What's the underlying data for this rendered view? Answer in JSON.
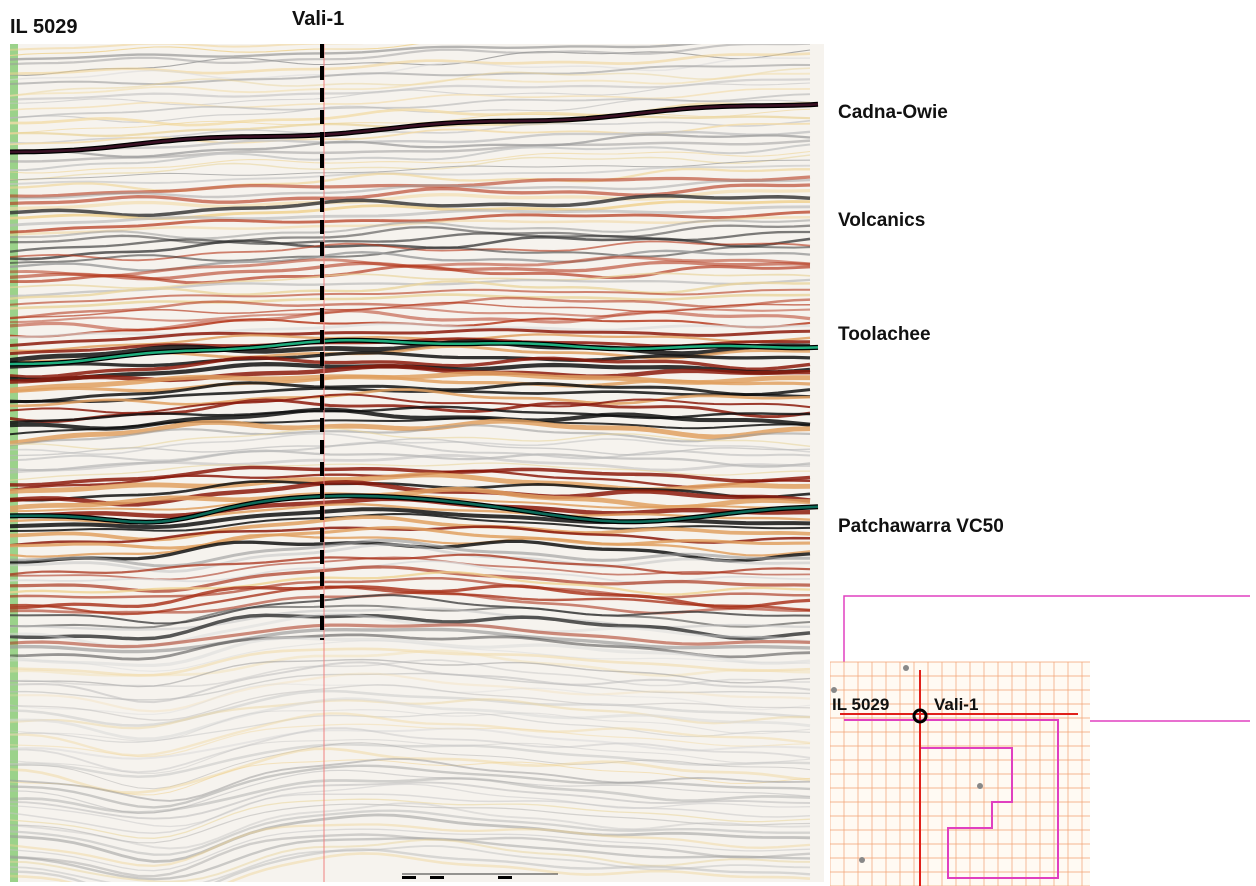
{
  "section": {
    "inline_label": "IL 5029",
    "well_label": "Vali-1",
    "horizons": [
      {
        "name": "Cadna-Owie",
        "color": "#3a1024"
      },
      {
        "name": "Volcanics",
        "color": ""
      },
      {
        "name": "Toolachee",
        "color": "#1fae7e"
      },
      {
        "name": "Patchawarra VC50",
        "color": "#0d6b5a"
      }
    ]
  },
  "basemap": {
    "inline_label": "IL 5029",
    "well_label": "Vali-1",
    "grid_color": "#f2a070",
    "outline_color": "#e040c0",
    "highlight_color": "#e0201a"
  }
}
